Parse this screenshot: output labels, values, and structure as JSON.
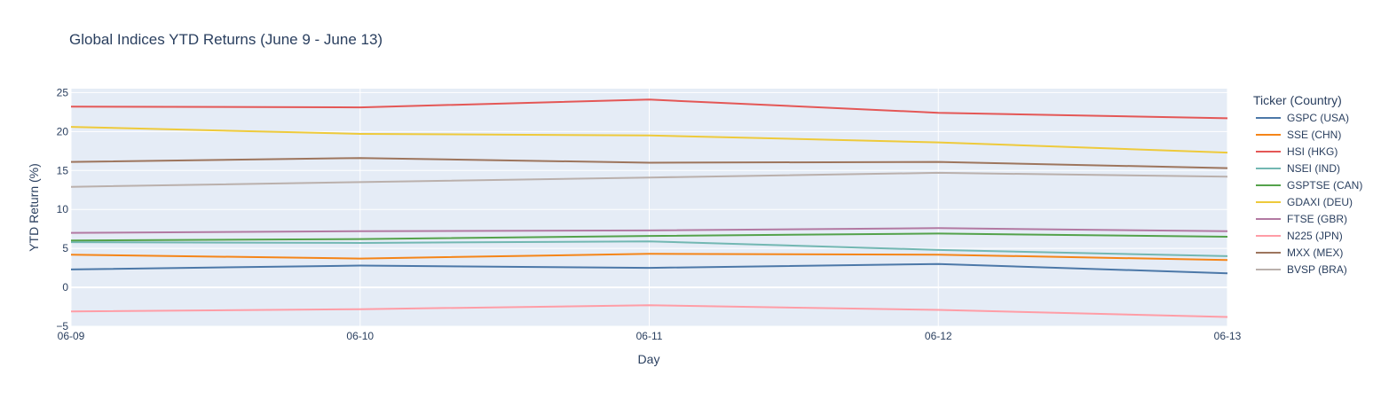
{
  "chart_data": {
    "type": "line",
    "title": "Global Indices YTD Returns (June 9 - June 13)",
    "xlabel": "Day",
    "ylabel": "YTD Return (%)",
    "categories": [
      "06-09",
      "06-10",
      "06-11",
      "06-12",
      "06-13"
    ],
    "ylim": [
      -5,
      25.5
    ],
    "yticks": [
      -5,
      0,
      5,
      10,
      15,
      20,
      25
    ],
    "grid": true,
    "legend": {
      "title": "Ticker (Country)",
      "position": "right"
    },
    "series": [
      {
        "name": "GSPC (USA)",
        "color": "#4c78a8",
        "values": [
          2.3,
          2.8,
          2.5,
          3.0,
          1.8
        ]
      },
      {
        "name": "SSE (CHN)",
        "color": "#f58518",
        "values": [
          4.2,
          3.7,
          4.3,
          4.2,
          3.5
        ]
      },
      {
        "name": "HSI (HKG)",
        "color": "#e45756",
        "values": [
          23.2,
          23.1,
          24.1,
          22.4,
          21.7
        ]
      },
      {
        "name": "NSEI (IND)",
        "color": "#72b7b2",
        "values": [
          5.8,
          5.7,
          5.9,
          4.8,
          4.0
        ]
      },
      {
        "name": "GSPTSE (CAN)",
        "color": "#54a24b",
        "values": [
          6.0,
          6.2,
          6.6,
          6.9,
          6.5
        ]
      },
      {
        "name": "GDAXI (DEU)",
        "color": "#eeca3b",
        "values": [
          20.6,
          19.7,
          19.5,
          18.6,
          17.3
        ]
      },
      {
        "name": "FTSE (GBR)",
        "color": "#b279a2",
        "values": [
          7.0,
          7.2,
          7.3,
          7.6,
          7.2
        ]
      },
      {
        "name": "N225 (JPN)",
        "color": "#ff9da6",
        "values": [
          -3.1,
          -2.8,
          -2.3,
          -2.9,
          -3.8
        ]
      },
      {
        "name": "MXX (MEX)",
        "color": "#9d755d",
        "values": [
          16.1,
          16.6,
          16.0,
          16.1,
          15.3
        ]
      },
      {
        "name": "BVSP (BRA)",
        "color": "#bab0ac",
        "values": [
          12.9,
          13.5,
          14.1,
          14.7,
          14.2
        ]
      }
    ]
  }
}
